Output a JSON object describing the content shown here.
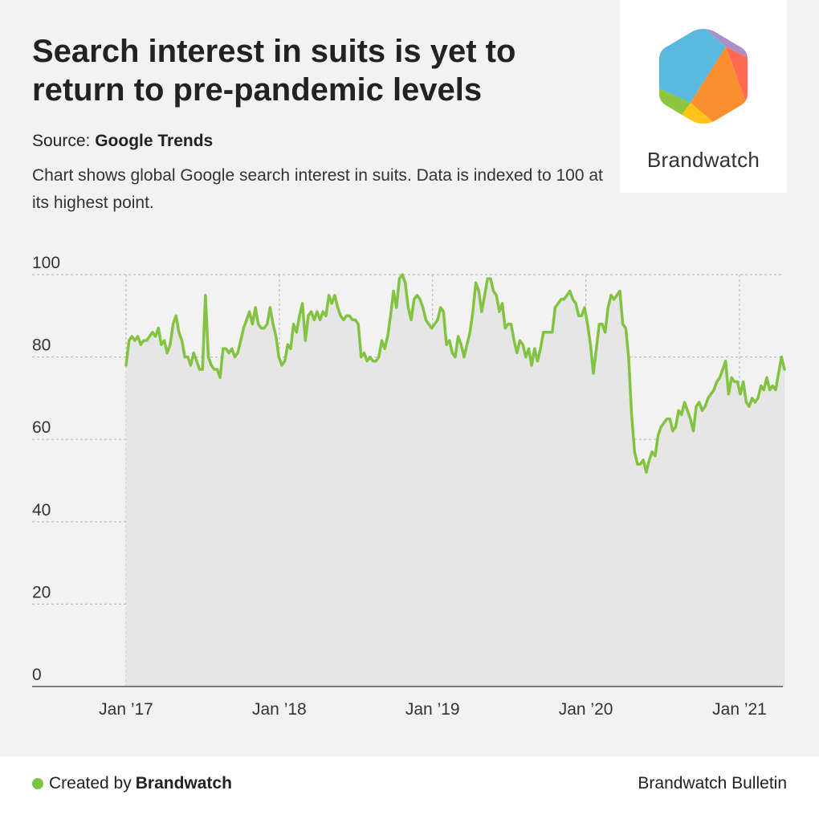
{
  "header": {
    "title": "Search interest in suits is yet to return to pre-pandemic levels",
    "source_label": "Source:",
    "source_name": "Google Trends",
    "description": "Chart shows global Google search interest in suits. Data is indexed to 100 at its highest point."
  },
  "logo": {
    "text": "Brandwatch",
    "colors": [
      "#5bb8df",
      "#ff6b52",
      "#fb8f2e",
      "#ffc516",
      "#8dc63f",
      "#a98ec7"
    ]
  },
  "footer": {
    "created_by_label": "Created by",
    "created_by_name": "Brandwatch",
    "right_text": "Brandwatch Bulletin",
    "dot_color": "#7dc242"
  },
  "colors": {
    "line": "#82c341",
    "area": "#e6e6e6",
    "grid": "#bdbdbd",
    "axis": "#555555"
  },
  "chart_data": {
    "type": "area",
    "title": "",
    "xlabel": "",
    "ylabel": "",
    "ylim": [
      0,
      100
    ],
    "yticks": [
      0,
      20,
      40,
      60,
      80,
      100
    ],
    "xticks": [
      {
        "label": "Jan ’17",
        "date": "2017-01-01"
      },
      {
        "label": "Jan ’18",
        "date": "2018-01-01"
      },
      {
        "label": "Jan ’19",
        "date": "2019-01-01"
      },
      {
        "label": "Jan ’20",
        "date": "2020-01-01"
      },
      {
        "label": "Jan ’21",
        "date": "2021-01-01"
      }
    ],
    "x_start": "2017-01-01",
    "x_step": "week",
    "grid": true,
    "series": [
      {
        "name": "",
        "values": [
          78,
          84,
          85,
          84,
          85,
          83,
          84,
          84,
          85,
          86,
          85,
          87,
          83,
          84,
          81,
          83,
          88,
          90,
          86,
          84,
          80,
          80,
          78,
          81,
          79,
          77,
          77,
          95,
          80,
          78,
          77,
          77,
          75,
          82,
          82,
          81,
          82,
          80,
          81,
          84,
          87,
          89,
          91,
          88,
          92,
          88,
          87,
          87,
          88,
          92,
          88,
          85,
          80,
          78,
          79,
          83,
          82,
          88,
          86,
          90,
          93,
          84,
          90,
          91,
          89,
          91,
          89,
          91,
          90,
          95,
          93,
          95,
          92,
          90,
          89,
          90,
          90,
          89,
          89,
          88,
          80,
          81,
          79,
          80,
          79,
          79,
          80,
          84,
          82,
          85,
          90,
          96,
          92,
          99,
          100,
          98,
          92,
          89,
          94,
          95,
          94,
          92,
          89,
          88,
          87,
          88,
          89,
          92,
          91,
          83,
          84,
          81,
          80,
          85,
          83,
          80,
          83,
          86,
          91,
          98,
          96,
          91,
          95,
          99,
          99,
          96,
          95,
          91,
          93,
          87,
          88,
          88,
          84,
          81,
          84,
          83,
          80,
          82,
          78,
          82,
          79,
          82,
          86,
          86,
          86,
          86,
          92,
          93,
          94,
          94,
          95,
          96,
          94,
          93,
          90,
          90,
          92,
          88,
          83,
          76,
          82,
          88,
          88,
          86,
          92,
          95,
          94,
          95,
          96,
          88,
          87,
          80,
          66,
          57,
          54,
          54,
          55,
          52,
          55,
          57,
          56,
          61,
          63,
          64,
          65,
          65,
          62,
          63,
          67,
          66,
          69,
          67,
          65,
          62,
          68,
          69,
          67,
          68,
          70,
          71,
          72,
          74,
          75,
          77,
          79,
          71,
          75,
          74,
          74,
          71,
          74,
          69,
          68,
          70,
          69,
          70,
          73,
          72,
          75,
          72,
          73,
          72,
          76,
          80,
          77
        ]
      }
    ]
  }
}
